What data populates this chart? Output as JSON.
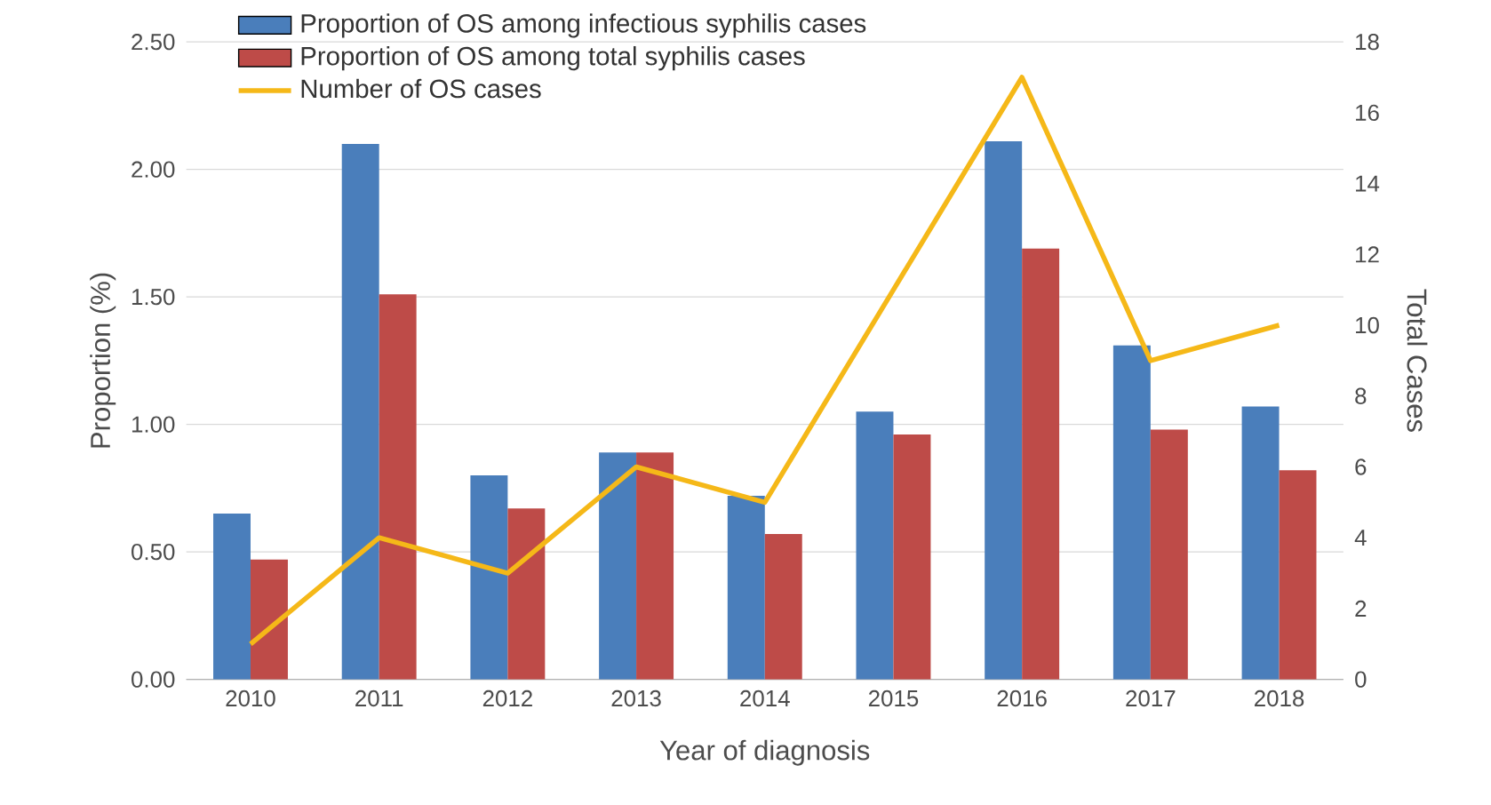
{
  "chart_data": {
    "type": "bar",
    "xlabel": "Year of diagnosis",
    "ylabel": "Proportion (%)",
    "y2label": "Total Cases",
    "categories": [
      "2010",
      "2011",
      "2012",
      "2013",
      "2014",
      "2015",
      "2016",
      "2017",
      "2018"
    ],
    "series": [
      {
        "name": "Proportion of OS among infectious syphilis cases",
        "color": "#4a7ebb",
        "values": [
          0.65,
          2.1,
          0.8,
          0.89,
          0.72,
          1.05,
          2.11,
          1.31,
          1.07
        ]
      },
      {
        "name": "Proportion of OS among total syphilis cases",
        "color": "#be4b48",
        "values": [
          0.47,
          1.51,
          0.67,
          0.89,
          0.57,
          0.96,
          1.69,
          0.98,
          0.82
        ]
      },
      {
        "name": "Number of OS cases",
        "type": "line",
        "axis": "y2",
        "color": "#f5b818",
        "values": [
          1,
          4,
          3,
          6,
          5,
          11,
          17,
          9,
          10
        ]
      }
    ],
    "ylim": [
      0,
      2.5
    ],
    "yticks": [
      {
        "value": 0,
        "label": "0.00"
      },
      {
        "value": 0.5,
        "label": "0.50"
      },
      {
        "value": 1,
        "label": "1.00"
      },
      {
        "value": 1.5,
        "label": "1.50"
      },
      {
        "value": 2,
        "label": "2.00"
      },
      {
        "value": 2.5,
        "label": "2.50"
      }
    ],
    "y2lim": [
      0,
      18
    ],
    "y2ticks": [
      0,
      2,
      4,
      6,
      8,
      10,
      12,
      14,
      16,
      18
    ],
    "grid": "y",
    "legend": "top left",
    "marker": "none",
    "line_style": "solid"
  }
}
